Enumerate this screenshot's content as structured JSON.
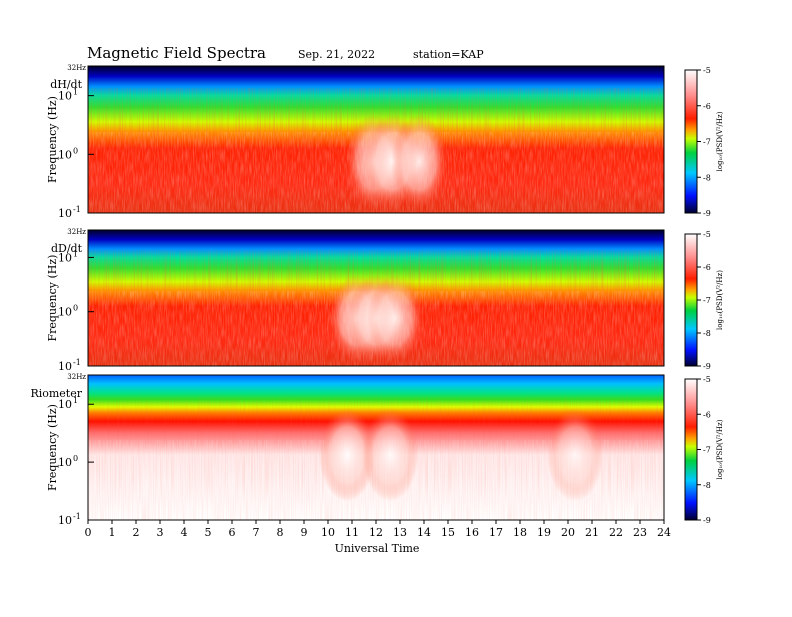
{
  "header": {
    "title": "Magnetic  Field  Spectra",
    "date": "Sep. 21, 2022",
    "station": "station=KAP"
  },
  "chart_data": [
    {
      "type": "heatmap",
      "panel_label": "dH/dt",
      "ylabel": "Frequency  (Hz)",
      "y_top_label": "32Hz",
      "y_ticks": [
        {
          "base": "10",
          "exp": "1"
        },
        {
          "base": "10",
          "exp": "0"
        },
        {
          "base": "10",
          "exp": "-1"
        }
      ],
      "xlim": [
        0,
        24
      ],
      "features": [
        {
          "ut": 11.9,
          "intensity": 0.85
        },
        {
          "ut": 12.7,
          "intensity": 0.95
        },
        {
          "ut": 13.8,
          "intensity": 0.9
        }
      ],
      "colorbar": {
        "label": "log₁₀(PSD(V²/Hz)",
        "ticks": [
          "-5",
          "-6",
          "-7",
          "-8",
          "-9"
        ],
        "range": [
          -9,
          -5
        ]
      }
    },
    {
      "type": "heatmap",
      "panel_label": "dD/dt",
      "ylabel": "Frequency  (Hz)",
      "y_top_label": "32Hz",
      "y_ticks": [
        {
          "base": "10",
          "exp": "1"
        },
        {
          "base": "10",
          "exp": "0"
        },
        {
          "base": "10",
          "exp": "-1"
        }
      ],
      "xlim": [
        0,
        24
      ],
      "features": [
        {
          "ut": 11.2,
          "intensity": 0.9
        },
        {
          "ut": 12.0,
          "intensity": 1.0
        },
        {
          "ut": 12.8,
          "intensity": 0.85
        }
      ],
      "colorbar": {
        "label": "log₁₀(PSD(V²/Hz)",
        "ticks": [
          "-5",
          "-6",
          "-7",
          "-8",
          "-9"
        ],
        "range": [
          -9,
          -5
        ]
      }
    },
    {
      "type": "heatmap",
      "panel_label": "Riometer",
      "ylabel": "Frequency  (Hz)",
      "y_top_label": "32Hz",
      "y_ticks": [
        {
          "base": "10",
          "exp": "1"
        },
        {
          "base": "10",
          "exp": "0"
        },
        {
          "base": "10",
          "exp": "-1"
        }
      ],
      "xlim": [
        0,
        24
      ],
      "features": [
        {
          "ut": 10.8,
          "intensity": 0.9
        },
        {
          "ut": 12.6,
          "intensity": 0.8
        },
        {
          "ut": 20.3,
          "intensity": 0.7
        }
      ],
      "colorbar": {
        "label": "log₁₀(PSD(V²/Hz)",
        "ticks": [
          "-5",
          "-6",
          "-7",
          "-8",
          "-9"
        ],
        "range": [
          -9,
          -5
        ]
      }
    }
  ],
  "x_axis": {
    "label": "Universal Time",
    "ticks": [
      "0",
      "1",
      "2",
      "3",
      "4",
      "5",
      "6",
      "7",
      "8",
      "9",
      "10",
      "11",
      "12",
      "13",
      "14",
      "15",
      "16",
      "17",
      "18",
      "19",
      "20",
      "21",
      "22",
      "23",
      "24"
    ]
  }
}
